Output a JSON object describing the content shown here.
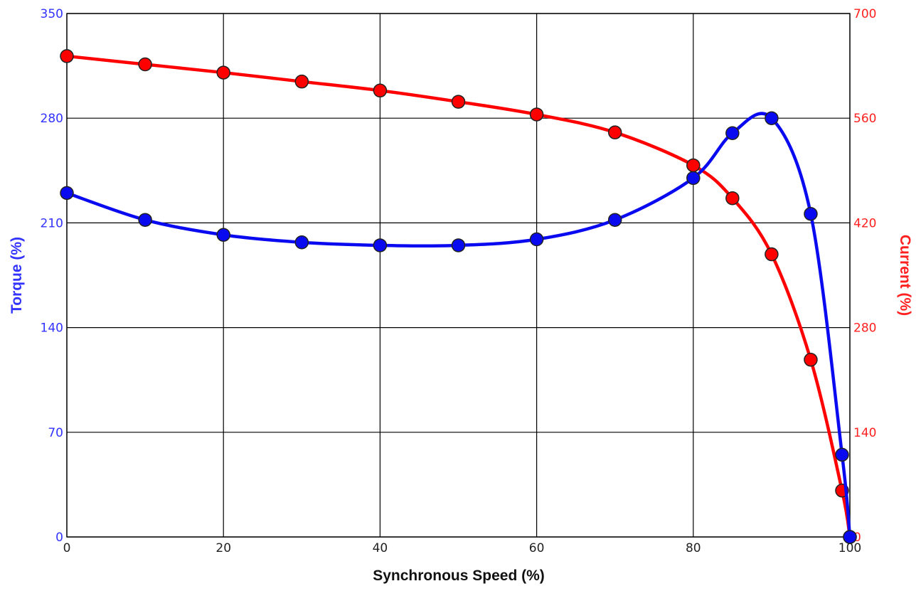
{
  "colors": {
    "torque": "#0a0af0",
    "current": "#ff0000",
    "left_axis_text": "#3333ff",
    "right_axis_text": "#ff2020",
    "grid": "#000000",
    "x_axis_text": "#222222"
  },
  "chart_data": {
    "type": "line",
    "xlabel": "Synchronous Speed (%)",
    "ylabel": "Torque (%)",
    "y2label": "Current (%)",
    "xlim": [
      0,
      100
    ],
    "ylim": [
      0,
      350
    ],
    "y2lim": [
      0,
      700
    ],
    "x_ticks": [
      "0",
      "20",
      "40",
      "60",
      "80",
      "100"
    ],
    "y_ticks": [
      "0",
      "70",
      "140",
      "210",
      "280",
      "350"
    ],
    "y2_ticks": [
      "0",
      "140",
      "280",
      "420",
      "560",
      "700"
    ],
    "grid": true,
    "series": [
      {
        "name": "Torque (%)",
        "axis": "left",
        "color": "#0a0af0",
        "x": [
          0,
          10,
          20,
          30,
          40,
          50,
          60,
          70,
          80,
          85,
          90,
          95,
          99,
          100
        ],
        "y": [
          230,
          212,
          202,
          197,
          195,
          195,
          199,
          212,
          240,
          270,
          280,
          216,
          55,
          0
        ]
      },
      {
        "name": "Current (%)",
        "axis": "right",
        "color": "#ff0000",
        "x": [
          0,
          10,
          20,
          30,
          40,
          50,
          60,
          70,
          80,
          85,
          90,
          95,
          99,
          100
        ],
        "y": [
          643,
          632,
          621,
          609,
          597,
          582,
          565,
          541,
          497,
          453,
          378,
          237,
          62,
          0
        ]
      }
    ]
  }
}
